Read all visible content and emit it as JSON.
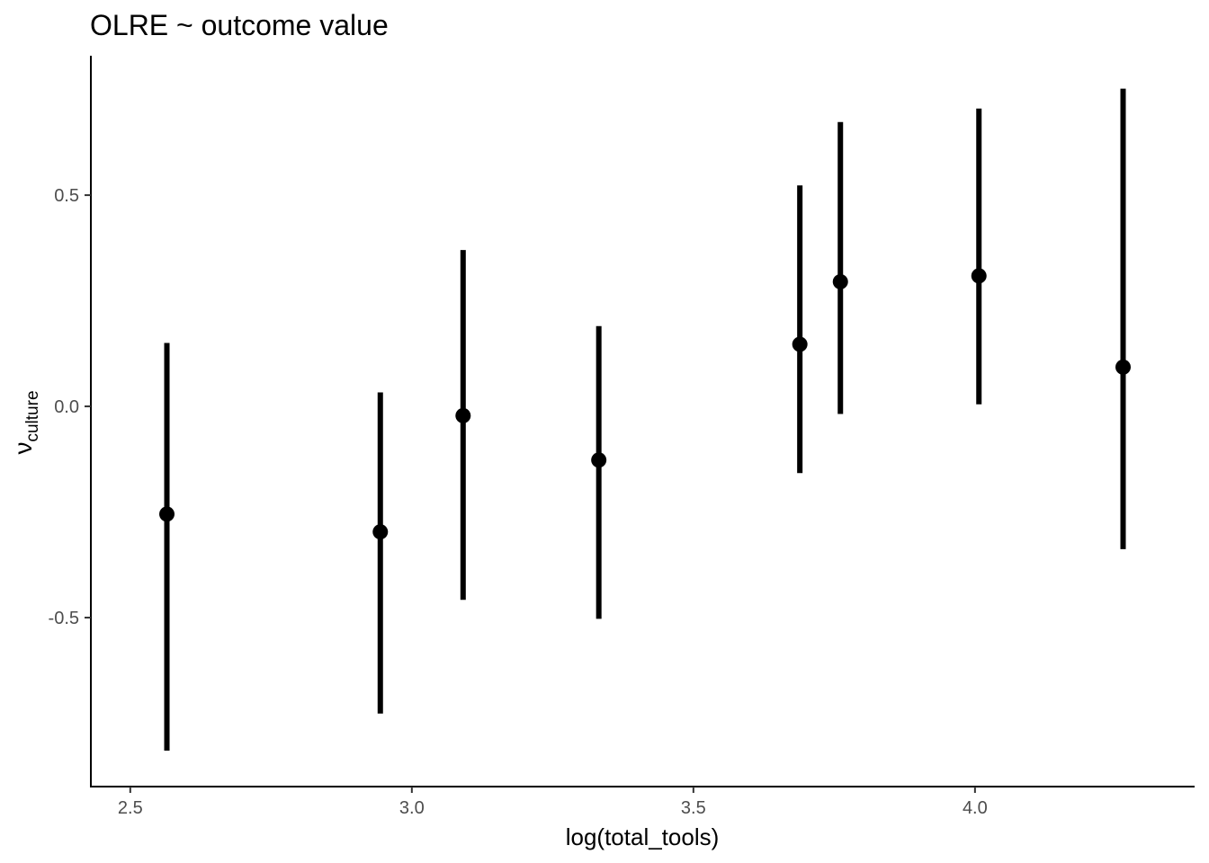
{
  "chart_data": {
    "type": "scatter",
    "title": "OLRE ~ outcome value",
    "xlabel": "log(total_tools)",
    "ylabel": {
      "symbol": "ν",
      "subscript": "culture"
    },
    "xlim": [
      2.43,
      4.39
    ],
    "ylim": [
      -0.9,
      0.83
    ],
    "xticks": [
      2.5,
      3.0,
      3.5,
      4.0
    ],
    "xtick_labels": [
      "2.5",
      "3.0",
      "3.5",
      "4.0"
    ],
    "yticks": [
      -0.5,
      0.0,
      0.5
    ],
    "ytick_labels": [
      "-0.5",
      "0.0",
      "0.5"
    ],
    "grid": false,
    "series": [
      {
        "points": [
          {
            "x": 2.565,
            "y": -0.255,
            "low": -0.815,
            "high": 0.15
          },
          {
            "x": 2.944,
            "y": -0.297,
            "low": -0.727,
            "high": 0.033
          },
          {
            "x": 3.091,
            "y": -0.022,
            "low": -0.458,
            "high": 0.37
          },
          {
            "x": 3.332,
            "y": -0.127,
            "low": -0.503,
            "high": 0.19
          },
          {
            "x": 3.689,
            "y": 0.147,
            "low": -0.158,
            "high": 0.523
          },
          {
            "x": 3.761,
            "y": 0.295,
            "low": -0.018,
            "high": 0.673
          },
          {
            "x": 4.007,
            "y": 0.309,
            "low": 0.005,
            "high": 0.705
          },
          {
            "x": 4.263,
            "y": 0.093,
            "low": -0.338,
            "high": 0.752
          }
        ]
      }
    ],
    "colors": {
      "mark": "#000000",
      "tick_label": "#4d4d4d",
      "axis": "#000000"
    }
  }
}
